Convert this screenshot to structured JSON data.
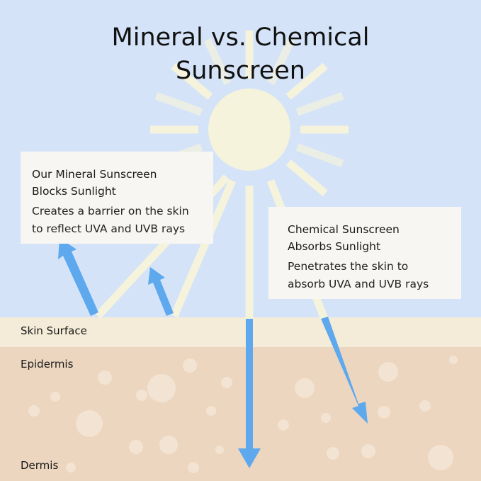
{
  "title_line1": "Mineral vs. Chemical",
  "title_line2": "Sunscreen",
  "mineral": {
    "heading_line1": "Our Mineral Sunscreen",
    "heading_line2": "Blocks Sunlight",
    "body_line1": "Creates a barrier on the skin",
    "body_line2": "to reflect UVA and UVB rays"
  },
  "chemical": {
    "heading_line1": "Chemical Sunscreen",
    "heading_line2": "Absorbs Sunlight",
    "body_line1": "Penetrates the skin to",
    "body_line2": "absorb UVA and UVB rays"
  },
  "layers": {
    "skin_surface": "Skin Surface",
    "epidermis": "Epidermis",
    "dermis": "Dermis"
  },
  "colors": {
    "sky": "#d4e3f8",
    "sun": "#f5f3dc",
    "skin_surface": "#f4ecd8",
    "skin": "#ecd6bf",
    "uv_arrow": "#5ea8ee"
  }
}
